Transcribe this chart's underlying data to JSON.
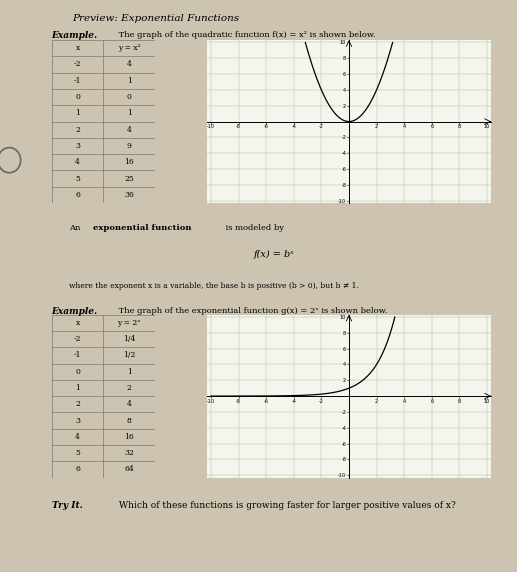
{
  "title": "Preview: Exponential Functions",
  "page_bg": "#ccc4b0",
  "example1_label": "Example.",
  "example1_rest": " The graph of the quadratic function f(x) = x² is shown below.",
  "table1_headers": [
    "x",
    "y = x²"
  ],
  "table1_data": [
    [
      -2,
      4
    ],
    [
      -1,
      1
    ],
    [
      0,
      0
    ],
    [
      1,
      1
    ],
    [
      2,
      4
    ],
    [
      3,
      9
    ],
    [
      4,
      16
    ],
    [
      5,
      25
    ],
    [
      6,
      36
    ]
  ],
  "graph1_xlim": [
    -10,
    10
  ],
  "graph1_ylim": [
    -10,
    10
  ],
  "graph1_xticks": [
    -10,
    -8,
    -6,
    -4,
    -2,
    2,
    4,
    6,
    8,
    10
  ],
  "graph1_yticks": [
    -10,
    -8,
    -6,
    -4,
    -2,
    2,
    4,
    6,
    8,
    10
  ],
  "box_line1a": "An ",
  "box_line1b": "exponential function",
  "box_line1c": " is modeled by",
  "box_formula": "f(x) = bˣ",
  "box_line3": "where the exponent x is a variable, the base b is positive (b > 0), but b ≠ 1.",
  "example2_label": "Example.",
  "example2_rest": " The graph of the exponential function g(x) = 2ˣ is shown below.",
  "table2_headers": [
    "x",
    "y = 2ˣ"
  ],
  "table2_data": [
    [
      -2,
      "1/4"
    ],
    [
      -1,
      "1/2"
    ],
    [
      0,
      1
    ],
    [
      1,
      2
    ],
    [
      2,
      4
    ],
    [
      3,
      8
    ],
    [
      4,
      16
    ],
    [
      5,
      32
    ],
    [
      6,
      64
    ]
  ],
  "graph2_xlim": [
    -10,
    10
  ],
  "graph2_ylim": [
    -10,
    10
  ],
  "graph2_xticks": [
    -10,
    -8,
    -6,
    -4,
    -2,
    2,
    4,
    6,
    8,
    10
  ],
  "graph2_yticks": [
    -10,
    -8,
    -6,
    -4,
    -2,
    2,
    4,
    6,
    8,
    10
  ],
  "tryit_label": "Try It.",
  "tryit_rest": " Which of these functions is growing faster for larger positive values of x?"
}
